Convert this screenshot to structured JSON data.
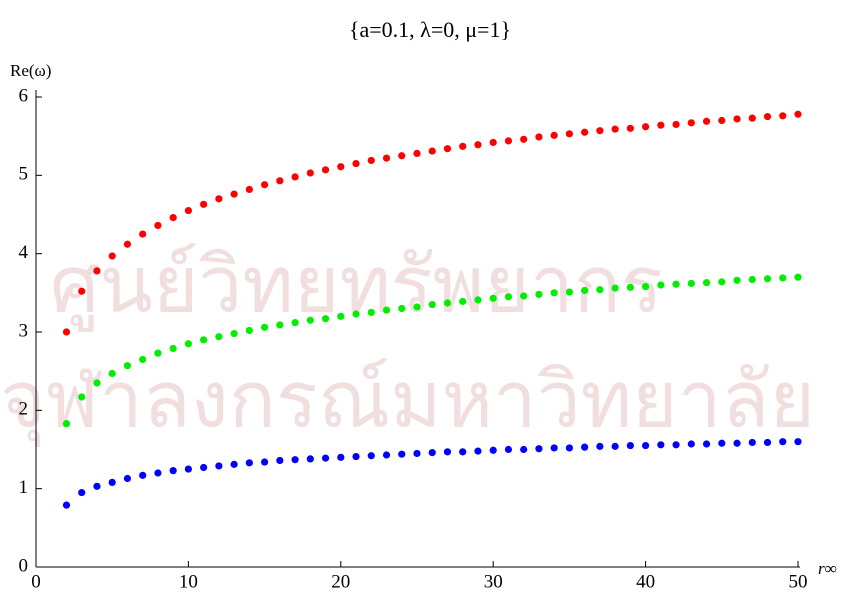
{
  "chart_data": {
    "type": "scatter",
    "title": "{a=0.1, λ=0, μ=1}",
    "y_label": "Re(ω)",
    "x_label": "r∞",
    "watermark": [
      "ศูนย์วิทยทรัพยากร",
      "จุฬาลงกรณ์มหาวิทยาลัย"
    ],
    "x": [
      2,
      3,
      4,
      5,
      6,
      7,
      8,
      9,
      10,
      11,
      12,
      13,
      14,
      15,
      16,
      17,
      18,
      19,
      20,
      21,
      22,
      23,
      24,
      25,
      26,
      27,
      28,
      29,
      30,
      31,
      32,
      33,
      34,
      35,
      36,
      37,
      38,
      39,
      40,
      41,
      42,
      43,
      44,
      45,
      46,
      47,
      48,
      49,
      50
    ],
    "series": [
      {
        "color": "#ff0000",
        "values": [
          3.0,
          3.52,
          3.78,
          3.97,
          4.12,
          4.25,
          4.36,
          4.46,
          4.55,
          4.63,
          4.7,
          4.76,
          4.82,
          4.88,
          4.93,
          4.98,
          5.03,
          5.07,
          5.11,
          5.15,
          5.19,
          5.22,
          5.25,
          5.28,
          5.31,
          5.34,
          5.37,
          5.39,
          5.42,
          5.44,
          5.46,
          5.49,
          5.51,
          5.53,
          5.55,
          5.57,
          5.59,
          5.6,
          5.62,
          5.64,
          5.65,
          5.67,
          5.69,
          5.7,
          5.72,
          5.73,
          5.75,
          5.76,
          5.78
        ]
      },
      {
        "color": "#00ee00",
        "values": [
          1.83,
          2.17,
          2.35,
          2.47,
          2.57,
          2.65,
          2.73,
          2.79,
          2.85,
          2.9,
          2.94,
          2.98,
          3.02,
          3.06,
          3.09,
          3.12,
          3.15,
          3.17,
          3.2,
          3.23,
          3.25,
          3.28,
          3.3,
          3.32,
          3.35,
          3.37,
          3.39,
          3.41,
          3.43,
          3.45,
          3.46,
          3.48,
          3.5,
          3.51,
          3.53,
          3.54,
          3.56,
          3.57,
          3.58,
          3.6,
          3.61,
          3.62,
          3.63,
          3.64,
          3.66,
          3.67,
          3.68,
          3.69,
          3.7
        ]
      },
      {
        "color": "#0000ff",
        "values": [
          0.79,
          0.95,
          1.03,
          1.08,
          1.13,
          1.17,
          1.2,
          1.23,
          1.25,
          1.27,
          1.29,
          1.31,
          1.33,
          1.34,
          1.36,
          1.37,
          1.38,
          1.39,
          1.4,
          1.41,
          1.42,
          1.43,
          1.44,
          1.45,
          1.46,
          1.47,
          1.47,
          1.48,
          1.49,
          1.5,
          1.5,
          1.51,
          1.52,
          1.52,
          1.53,
          1.54,
          1.54,
          1.55,
          1.55,
          1.56,
          1.56,
          1.57,
          1.57,
          1.58,
          1.58,
          1.59,
          1.59,
          1.6,
          1.6
        ]
      }
    ],
    "xlim": [
      0,
      50
    ],
    "xticks": [
      0,
      10,
      20,
      30,
      40,
      50
    ],
    "ylim": [
      0,
      6
    ],
    "yticks": [
      0,
      1,
      2,
      3,
      4,
      5,
      6
    ]
  }
}
